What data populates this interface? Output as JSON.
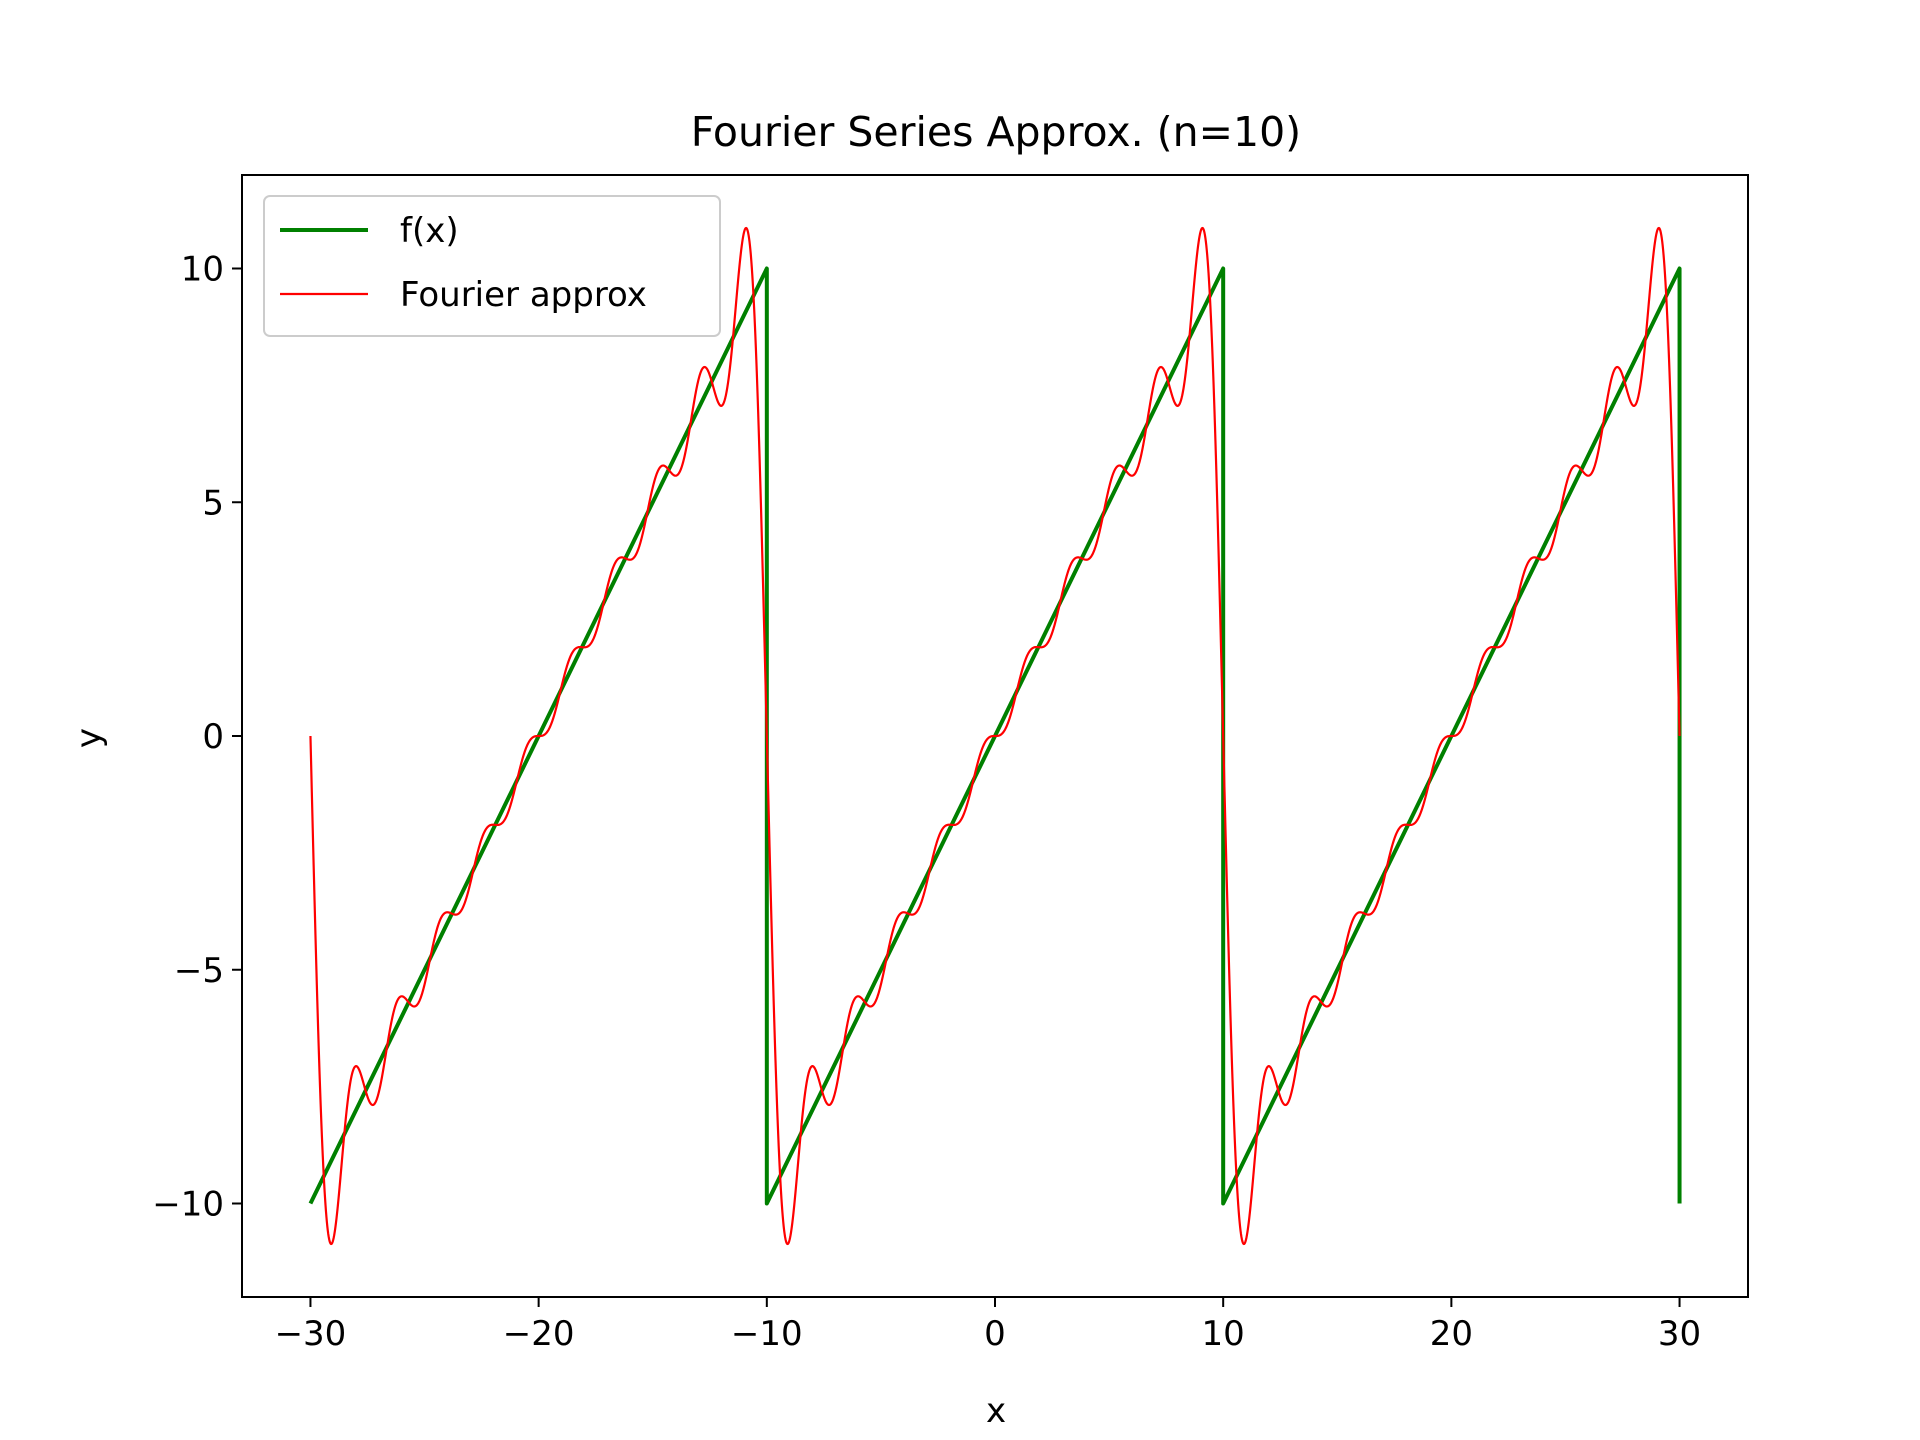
{
  "chart_data": {
    "type": "line",
    "title": "Fourier Series Approx. (n=10)",
    "xlabel": "x",
    "ylabel": "y",
    "xlim": [
      -33,
      33
    ],
    "ylim": [
      -12,
      12
    ],
    "xticks": [
      -30,
      -20,
      -10,
      0,
      10,
      20,
      30
    ],
    "xtick_labels": [
      "−30",
      "−20",
      "−10",
      "0",
      "10",
      "20",
      "30"
    ],
    "yticks": [
      -10,
      -5,
      0,
      5,
      10
    ],
    "ytick_labels": [
      "−10",
      "−5",
      "0",
      "5",
      "10"
    ],
    "grid": false,
    "legend_position": "upper-left",
    "series": [
      {
        "name": "f(x)",
        "color": "#008000",
        "function": "sawtooth",
        "period": 20,
        "amplitude": 10,
        "x_range": [
          -30,
          30
        ],
        "points": [
          [
            -30,
            -10
          ],
          [
            -10,
            10
          ],
          [
            -10,
            -10
          ],
          [
            10,
            10
          ],
          [
            10,
            -10
          ],
          [
            30,
            10
          ],
          [
            30,
            -10
          ]
        ]
      },
      {
        "name": "Fourier approx",
        "color": "#ff0000",
        "function": "fourier_sawtooth",
        "terms": 10,
        "period": 20,
        "amplitude": 10,
        "x_range": [
          -30,
          30
        ]
      }
    ]
  }
}
